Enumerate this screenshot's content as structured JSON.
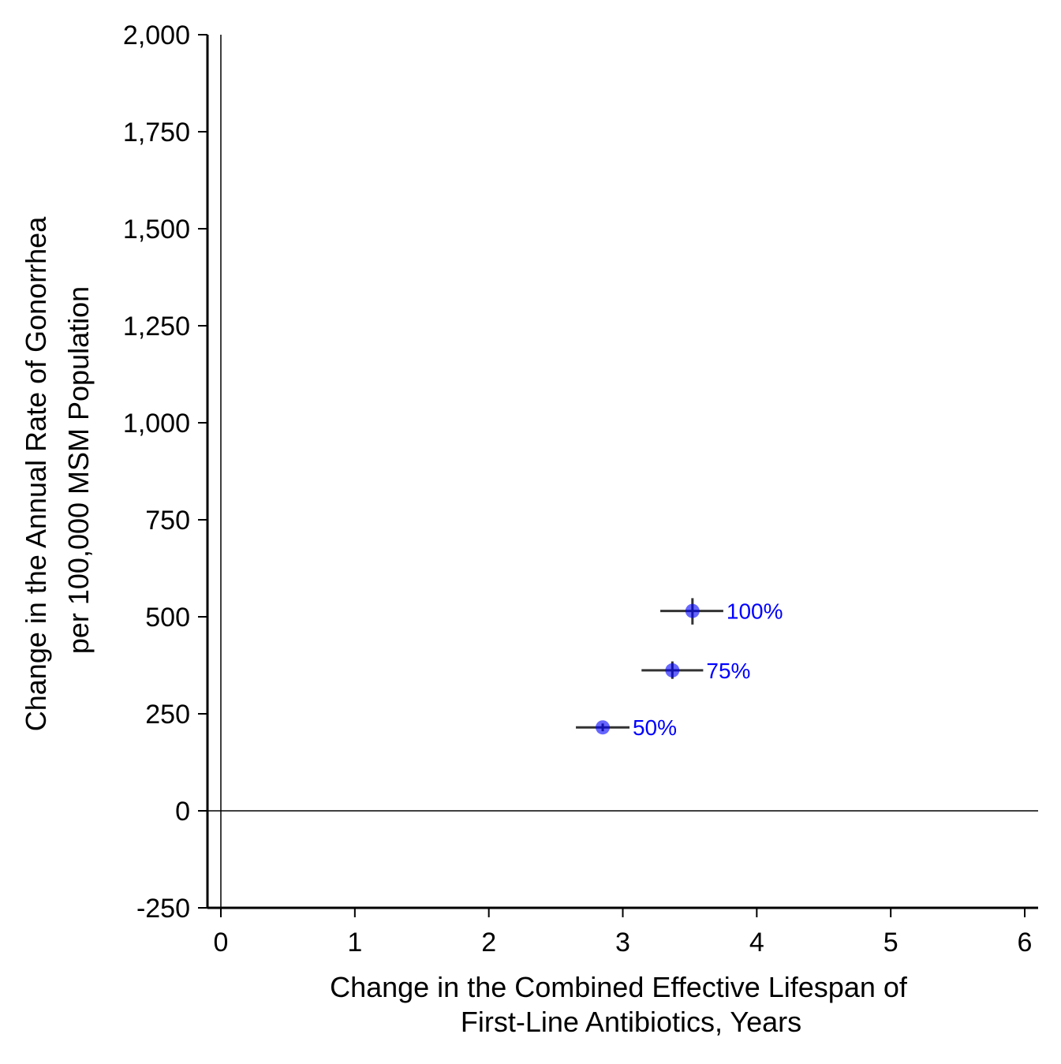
{
  "chart_data": {
    "type": "scatter",
    "xlabel_lines": [
      "Change in the Combined Effective Lifespan of",
      "First-Line Antibiotics, Years"
    ],
    "ylabel_lines": [
      "Change in the Annual Rate of Gonorrhea",
      "per 100,000 MSM Population"
    ],
    "xlim": [
      -0.1,
      6.1
    ],
    "ylim": [
      -250,
      2000
    ],
    "x_ticks": [
      0,
      1,
      2,
      3,
      4,
      5,
      6
    ],
    "x_tick_labels": [
      "0",
      "1",
      "2",
      "3",
      "4",
      "5",
      "6"
    ],
    "y_ticks": [
      -250,
      0,
      250,
      500,
      750,
      1000,
      1250,
      1500,
      1750,
      2000
    ],
    "y_tick_labels": [
      "-250",
      "0",
      "250",
      "500",
      "750",
      "1,000",
      "1,250",
      "1,500",
      "1,750",
      "2,000"
    ],
    "reference_lines": {
      "x": 0,
      "y": 0
    },
    "grid": false,
    "point_color": "#0000ff",
    "label_color": "#0000ff",
    "errorbar_color": "#333333",
    "points": [
      {
        "label": "50%",
        "x": 2.85,
        "y": 215,
        "x_err": [
          2.65,
          3.05
        ],
        "y_err": [
          205,
          225
        ]
      },
      {
        "label": "75%",
        "x": 3.37,
        "y": 362,
        "x_err": [
          3.14,
          3.6
        ],
        "y_err": [
          340,
          385
        ]
      },
      {
        "label": "100%",
        "x": 3.52,
        "y": 515,
        "x_err": [
          3.28,
          3.75
        ],
        "y_err": [
          480,
          548
        ]
      }
    ]
  }
}
